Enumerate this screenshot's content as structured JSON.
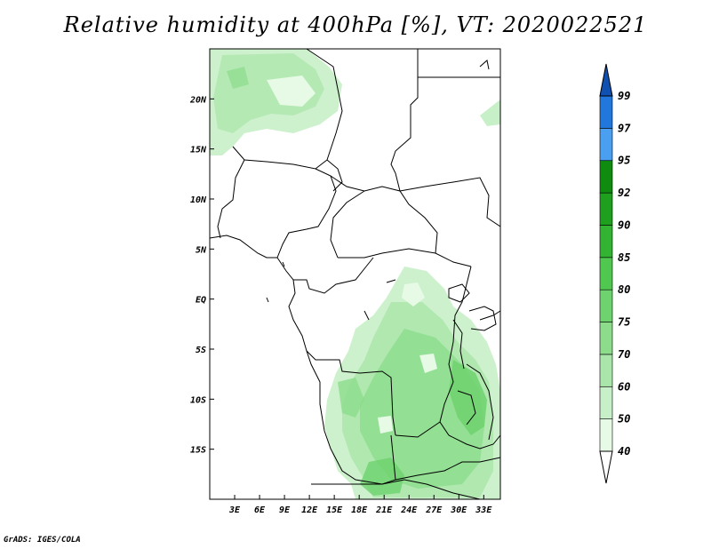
{
  "title": "Relative humidity at 400hPa [%], VT: 2020022521",
  "credit": "GrADS: IGES/COLA",
  "map": {
    "lon_range": [
      0,
      35
    ],
    "lat_range": [
      -20,
      25
    ],
    "lat_ticks": [
      {
        "value": 20,
        "label": "20N"
      },
      {
        "value": 15,
        "label": "15N"
      },
      {
        "value": 10,
        "label": "10N"
      },
      {
        "value": 5,
        "label": "5N"
      },
      {
        "value": 0,
        "label": "EQ"
      },
      {
        "value": -5,
        "label": "5S"
      },
      {
        "value": -10,
        "label": "10S"
      },
      {
        "value": -15,
        "label": "15S"
      }
    ],
    "lon_ticks": [
      {
        "value": 3,
        "label": "3E"
      },
      {
        "value": 6,
        "label": "6E"
      },
      {
        "value": 9,
        "label": "9E"
      },
      {
        "value": 12,
        "label": "12E"
      },
      {
        "value": 15,
        "label": "15E"
      },
      {
        "value": 18,
        "label": "18E"
      },
      {
        "value": 21,
        "label": "21E"
      },
      {
        "value": 24,
        "label": "24E"
      },
      {
        "value": 27,
        "label": "27E"
      },
      {
        "value": 30,
        "label": "30E"
      },
      {
        "value": 33,
        "label": "33E"
      }
    ]
  },
  "colorbar": {
    "levels": [
      "40",
      "50",
      "60",
      "70",
      "75",
      "80",
      "85",
      "90",
      "92",
      "95",
      "97",
      "99"
    ],
    "colors": [
      "#ffffff",
      "#e6fae6",
      "#c8f0c8",
      "#aae6aa",
      "#8cdc8c",
      "#6ed26e",
      "#50c850",
      "#32b432",
      "#1ea01e",
      "#0f8c0f",
      "#4a9ff0",
      "#2277dd",
      "#1050b0"
    ]
  }
}
